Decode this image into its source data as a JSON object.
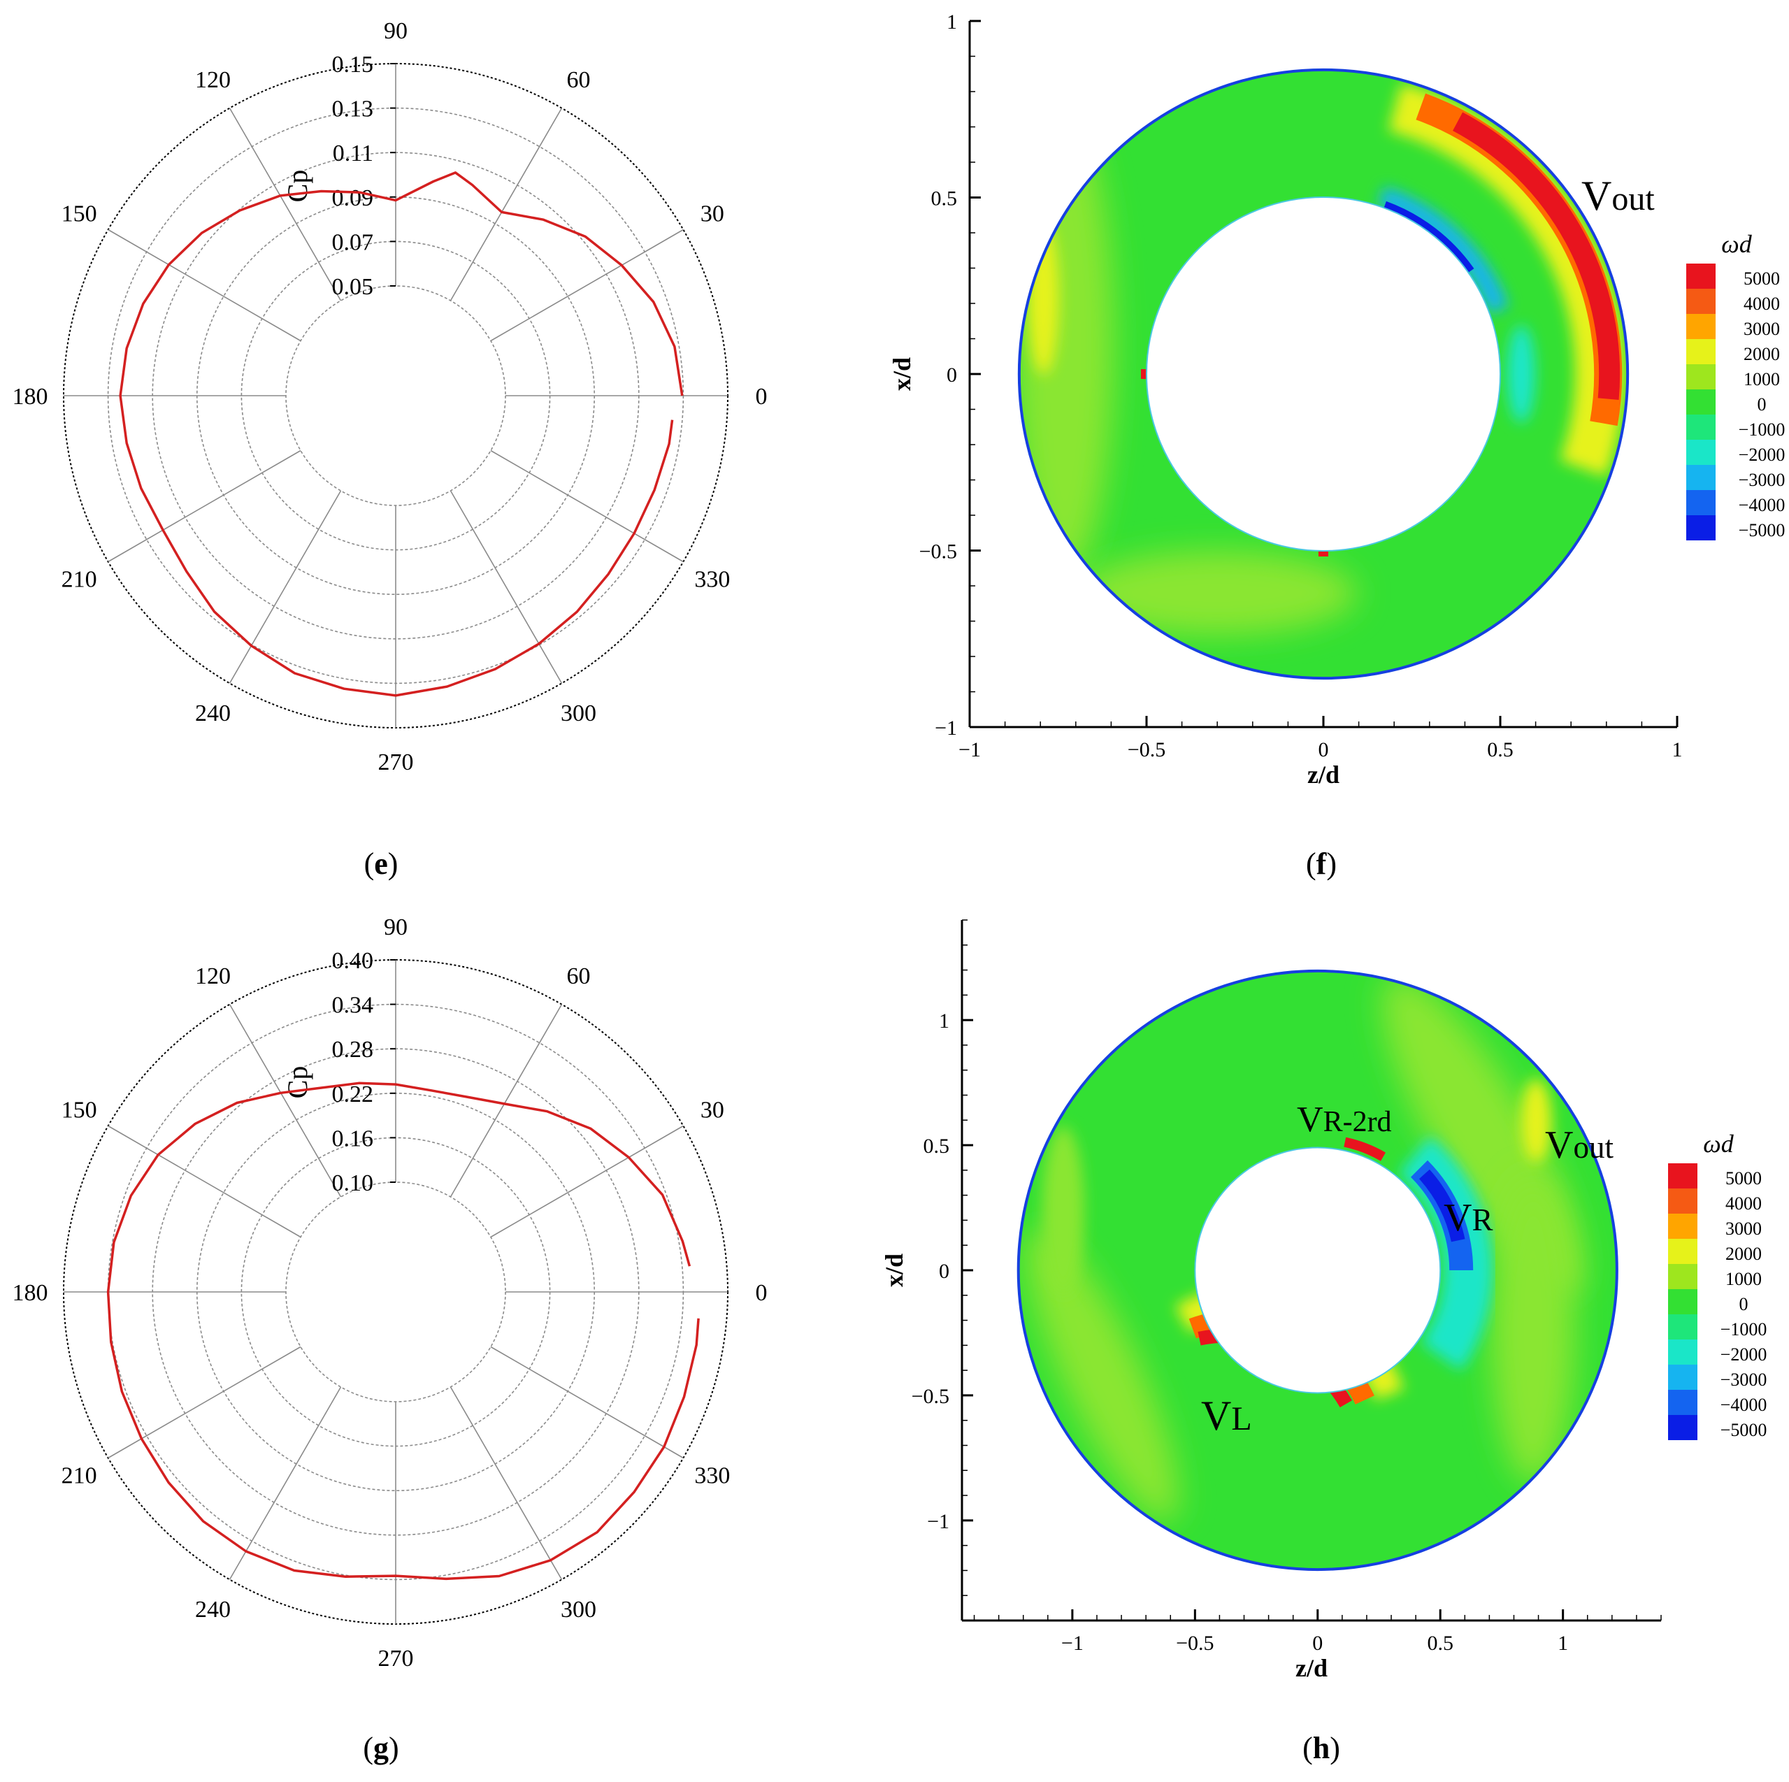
{
  "panels": {
    "e": {
      "label_open": "(",
      "letter": "e",
      "label_close": ")"
    },
    "f": {
      "label_open": "(",
      "letter": "f",
      "label_close": ")"
    },
    "g": {
      "label_open": "(",
      "letter": "g",
      "label_close": ")"
    },
    "h": {
      "label_open": "(",
      "letter": "h",
      "label_close": ")"
    }
  },
  "colors": {
    "curve": "#d42020",
    "grid": "#8a8a8a",
    "field_green": "#33e033",
    "field_lightgreen": "#8ae633",
    "field_yellow": "#e6f21a",
    "field_red": "#e8141e",
    "field_orange": "#ff6a00",
    "field_cyan": "#1ae6c8",
    "field_blue": "#0a1ee6",
    "rim_blue": "#1640e0"
  },
  "chart_data": [
    {
      "id": "e",
      "type": "polar-line",
      "rlabel": "Cp",
      "rlim": [
        0.05,
        0.15
      ],
      "rticks": [
        "0.05",
        "0.07",
        "0.09",
        "0.11",
        "0.13",
        "0.15"
      ],
      "theta_ticks": [
        "0",
        "30",
        "60",
        "90",
        "120",
        "150",
        "180",
        "210",
        "240",
        "270",
        "300",
        "330"
      ],
      "series": [
        {
          "theta": [
            0,
            10,
            20,
            30,
            40,
            50,
            60,
            70,
            75,
            80,
            90,
            100,
            110,
            120,
            130,
            140,
            150,
            160,
            170,
            180,
            190,
            200,
            210,
            220,
            230,
            240,
            250,
            260,
            270,
            280,
            290,
            300,
            310,
            320,
            330,
            340,
            350,
            355
          ],
          "r": [
            0.1295,
            0.128,
            0.124,
            0.118,
            0.112,
            0.104,
            0.096,
            0.1015,
            0.1045,
            0.0985,
            0.0885,
            0.0935,
            0.0985,
            0.1045,
            0.1095,
            0.1145,
            0.1185,
            0.1215,
            0.1235,
            0.1245,
            0.1235,
            0.1225,
            0.1215,
            0.1235,
            0.1275,
            0.1305,
            0.1335,
            0.1345,
            0.1355,
            0.1335,
            0.1315,
            0.1295,
            0.1275,
            0.1255,
            0.1245,
            0.1245,
            0.1255,
            0.1255
          ]
        }
      ]
    },
    {
      "id": "f",
      "type": "heatmap",
      "xlabel": "z/d",
      "ylabel": "x/d",
      "xlim": [
        -1,
        1
      ],
      "ylim": [
        -1,
        1
      ],
      "xticks": [
        "−1",
        "−0.5",
        "0",
        "0.5",
        "1"
      ],
      "yticks": [
        "−1",
        "−0.5",
        "0",
        "0.5",
        "1"
      ],
      "colorbar_title": "ωd",
      "colorbar_levels": [
        "5000",
        "4000",
        "3000",
        "2000",
        "1000",
        "0",
        "−1000",
        "−2000",
        "−3000",
        "−4000",
        "−5000"
      ],
      "colorbar_colors": [
        "#e8141e",
        "#f55a14",
        "#ffa500",
        "#e6f21a",
        "#9ee61e",
        "#33e033",
        "#1ee67a",
        "#1ae6c8",
        "#16b4f0",
        "#1464f0",
        "#0a1ee6"
      ],
      "ring": {
        "inner_radius": 0.5,
        "outer_radius": 0.86
      },
      "annotations": [
        {
          "main": "V",
          "sub": "out"
        }
      ]
    },
    {
      "id": "g",
      "type": "polar-line",
      "rlabel": "Cp",
      "rlim": [
        0.1,
        0.4
      ],
      "rticks": [
        "0.10",
        "0.16",
        "0.22",
        "0.28",
        "0.34",
        "0.40"
      ],
      "theta_ticks": [
        "0",
        "30",
        "60",
        "90",
        "120",
        "150",
        "180",
        "210",
        "240",
        "270",
        "300",
        "330"
      ],
      "series": [
        {
          "theta": [
            5,
            10,
            20,
            30,
            40,
            50,
            60,
            70,
            80,
            90,
            100,
            110,
            120,
            130,
            140,
            150,
            160,
            170,
            180,
            190,
            200,
            210,
            220,
            230,
            240,
            250,
            260,
            270,
            280,
            290,
            300,
            310,
            320,
            330,
            340,
            350,
            355
          ],
          "r": [
            0.35,
            0.345,
            0.335,
            0.315,
            0.295,
            0.27,
            0.245,
            0.232,
            0.228,
            0.232,
            0.238,
            0.245,
            0.262,
            0.285,
            0.305,
            0.322,
            0.332,
            0.338,
            0.34,
            0.342,
            0.345,
            0.348,
            0.352,
            0.356,
            0.356,
            0.352,
            0.342,
            0.335,
            0.345,
            0.36,
            0.37,
            0.375,
            0.372,
            0.37,
            0.366,
            0.364,
            0.362
          ]
        }
      ]
    },
    {
      "id": "h",
      "type": "heatmap",
      "xlabel": "z/d",
      "ylabel": "x/d",
      "xlim": [
        -1.45,
        1.4
      ],
      "ylim": [
        -1.4,
        1.4
      ],
      "xticks": [
        "−1",
        "−0.5",
        "0",
        "0.5",
        "1"
      ],
      "yticks": [
        "−1",
        "−0.5",
        "0",
        "0.5",
        "1"
      ],
      "colorbar_title": "ωd",
      "colorbar_levels": [
        "5000",
        "4000",
        "3000",
        "2000",
        "1000",
        "0",
        "−1000",
        "−2000",
        "−3000",
        "−4000",
        "−5000"
      ],
      "colorbar_colors": [
        "#e8141e",
        "#f55a14",
        "#ffa500",
        "#e6f21a",
        "#9ee61e",
        "#33e033",
        "#1ee67a",
        "#1ae6c8",
        "#16b4f0",
        "#1464f0",
        "#0a1ee6"
      ],
      "ring": {
        "inner_radius": 0.5,
        "outer_radius": 1.22
      },
      "annotations": [
        {
          "main": "V",
          "sub": "R-2rd"
        },
        {
          "main": "V",
          "sub": "out"
        },
        {
          "main": "V",
          "sub": "R"
        },
        {
          "main": "V",
          "sub": "L"
        }
      ]
    }
  ]
}
